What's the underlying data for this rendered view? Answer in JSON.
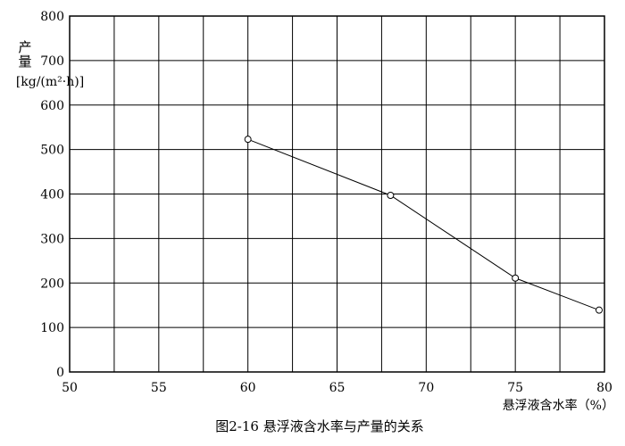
{
  "chart_data": {
    "type": "line",
    "title": "图2-16   悬浮液含水率与产量的关系",
    "xlabel": "悬浮液含水率（%）",
    "ylabel_lines": [
      "产",
      "量",
      "[kg/(m²·h)]"
    ],
    "xlim": [
      50,
      80
    ],
    "ylim": [
      0,
      800
    ],
    "x_ticks": [
      50,
      55,
      60,
      65,
      70,
      75,
      80
    ],
    "y_ticks": [
      0,
      100,
      200,
      300,
      400,
      500,
      600,
      700,
      800
    ],
    "grid": true,
    "x_grid_step": 2.5,
    "marker": "open-circle",
    "line_color": "#000000",
    "x": [
      60,
      68,
      75,
      79.7
    ],
    "y": [
      523,
      397,
      211,
      139
    ]
  }
}
